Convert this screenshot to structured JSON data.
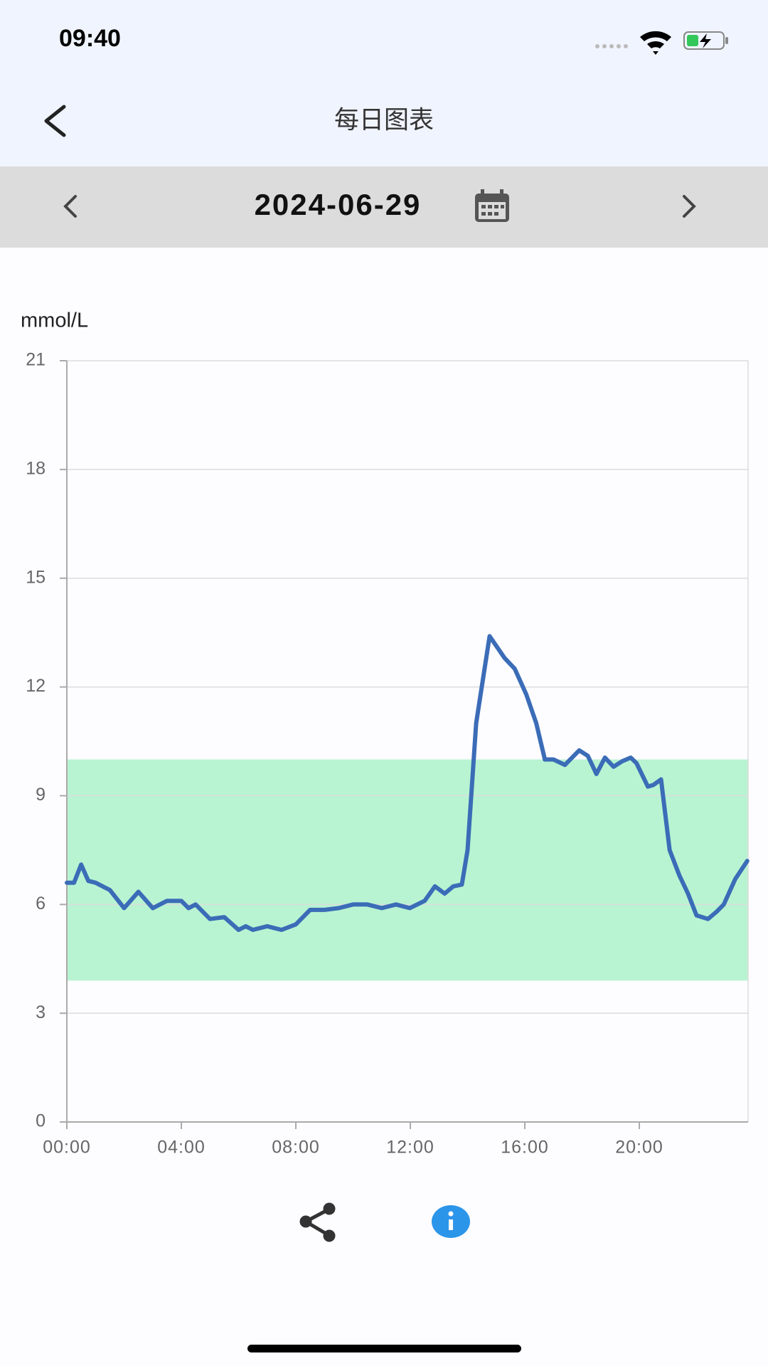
{
  "status_bar": {
    "time": "09:40"
  },
  "header": {
    "title": "每日图表"
  },
  "date_bar": {
    "date": "2024-06-29"
  },
  "chart_data": {
    "type": "line",
    "y_label": "mmol/L",
    "x": [
      0,
      0.25,
      0.5,
      0.75,
      1.0,
      1.5,
      2.0,
      2.5,
      3.0,
      3.5,
      4.0,
      4.25,
      4.5,
      5.0,
      5.5,
      6.0,
      6.25,
      6.5,
      7.0,
      7.5,
      8.0,
      8.5,
      9.0,
      9.5,
      10.0,
      10.5,
      11.0,
      11.5,
      11.98,
      12.5,
      12.86,
      13.2,
      13.5,
      13.8,
      14.0,
      14.3,
      14.77,
      15.29,
      15.65,
      16.05,
      16.4,
      16.7,
      17.0,
      17.4,
      17.9,
      18.2,
      18.5,
      18.8,
      19.1,
      19.4,
      19.7,
      19.9,
      20.3,
      20.5,
      20.76,
      21.06,
      21.4,
      21.7,
      22.0,
      22.4,
      22.7,
      22.95,
      23.35,
      23.77
    ],
    "values": [
      6.6,
      6.6,
      7.1,
      6.65,
      6.6,
      6.4,
      5.9,
      6.35,
      5.9,
      6.1,
      6.1,
      5.9,
      6.0,
      5.6,
      5.65,
      5.3,
      5.4,
      5.3,
      5.4,
      5.3,
      5.45,
      5.85,
      5.85,
      5.9,
      6.0,
      6.0,
      5.9,
      6.0,
      5.9,
      6.1,
      6.5,
      6.3,
      6.5,
      6.55,
      7.5,
      11.0,
      13.4,
      12.8,
      12.5,
      11.8,
      11.0,
      10.0,
      10.0,
      9.85,
      10.25,
      10.1,
      9.6,
      10.05,
      9.8,
      9.95,
      10.05,
      9.9,
      9.25,
      9.3,
      9.45,
      7.5,
      6.8,
      6.3,
      5.7,
      5.6,
      5.8,
      6.0,
      6.7,
      7.2
    ],
    "color": "#3b6cb7",
    "target_range": [
      3.9,
      10
    ],
    "target_color": "#b8f4d2",
    "xlim": [
      0,
      23.8
    ],
    "ylim": [
      0,
      21
    ],
    "xticks": [
      {
        "value": 0,
        "label": "00:00"
      },
      {
        "value": 4,
        "label": "04:00"
      },
      {
        "value": 8,
        "label": "08:00"
      },
      {
        "value": 12,
        "label": "12:00"
      },
      {
        "value": 16,
        "label": "16:00"
      },
      {
        "value": 20,
        "label": "20:00"
      }
    ],
    "yticks": [
      0,
      3,
      6,
      9,
      12,
      15,
      18,
      21
    ],
    "grid": true
  }
}
